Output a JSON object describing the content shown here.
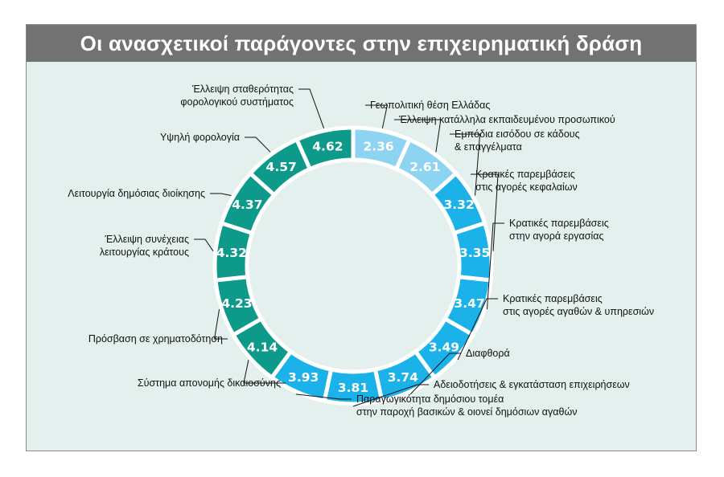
{
  "chart_data": {
    "type": "donut",
    "title": "Οι ανασχετικοί παράγοντες στην επιχειρηματική δράση",
    "colors": {
      "teal": "#0d9a8a",
      "blue": "#1bb2ea",
      "light": "#8dd3f2",
      "separator": "#ffffff",
      "background": "#e3f0ee",
      "title_bar": "#727272"
    },
    "slices": [
      {
        "label": [
          "Γεωπολιτική θέση Ελλάδας"
        ],
        "value": 2.36,
        "color": "light"
      },
      {
        "label": [
          "Έλλειψη κατάλληλα εκπαιδευμένου προσωπικού"
        ],
        "value": 2.61,
        "color": "light"
      },
      {
        "label": [
          "Εμπόδια εισόδου σε κάδους",
          "& επαγγέλματα"
        ],
        "value": 3.32,
        "color": "blue"
      },
      {
        "label": [
          "Κρατικές παρεμβάσεις",
          "στις αγορές κεφαλαίων"
        ],
        "value": 3.35,
        "color": "blue"
      },
      {
        "label": [
          "Κρατικές παρεμβάσεις",
          "στην αγορά εργασίας"
        ],
        "value": 3.47,
        "color": "blue"
      },
      {
        "label": [
          "Κρατικές παρεμβάσεις",
          "στις αγορές αγαθών & υπηρεσιών"
        ],
        "value": 3.49,
        "color": "blue"
      },
      {
        "label": [
          "Διαφθορά"
        ],
        "value": 3.74,
        "color": "blue"
      },
      {
        "label": [
          "Αδειοδοτήσεις & εγκατάσταση επιχειρήσεων"
        ],
        "value": 3.81,
        "color": "blue"
      },
      {
        "label": [
          "Παραγωγικότητα δημόσιου τομέα",
          "στην παροχή βασικών & οιονεί δημόσιων αγαθών"
        ],
        "value": 3.93,
        "color": "blue"
      },
      {
        "label": [
          "Σύστημα απονομής δικαιοσύνης"
        ],
        "value": 4.14,
        "color": "teal"
      },
      {
        "label": [
          "Πρόσβαση σε χρηματοδότηση"
        ],
        "value": 4.23,
        "color": "teal"
      },
      {
        "label": [
          "Έλλειψη συνέχειας",
          "λειτουργίας κράτους"
        ],
        "value": 4.32,
        "color": "teal"
      },
      {
        "label": [
          "Λειτουργία δημόσιας διοίκησης"
        ],
        "value": 4.37,
        "color": "teal"
      },
      {
        "label": [
          "Υψηλή φορολογία"
        ],
        "value": 4.57,
        "color": "teal"
      },
      {
        "label": [
          "Έλλειψη σταθερότητας",
          "φορολογικού συστήματος"
        ],
        "value": 4.62,
        "color": "teal"
      }
    ]
  }
}
